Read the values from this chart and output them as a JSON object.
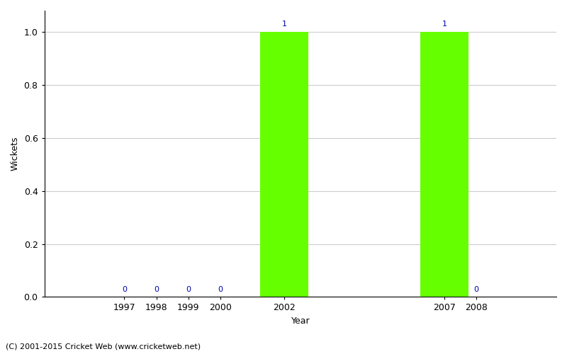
{
  "years": [
    1997,
    1998,
    1999,
    2000,
    2002,
    2007,
    2008
  ],
  "values": [
    0,
    0,
    0,
    0,
    1,
    1,
    0
  ],
  "bar_color": "#66ff00",
  "bar_edge_color": "#66ff00",
  "annotation_color": "#0000aa",
  "xlabel": "Year",
  "ylabel": "Wickets",
  "ylim": [
    0.0,
    1.08
  ],
  "yticks": [
    0.0,
    0.2,
    0.4,
    0.6,
    0.8,
    1.0
  ],
  "xlim_left": 1994.5,
  "xlim_right": 2010.5,
  "background_color": "#ffffff",
  "grid_color": "#cccccc",
  "footer": "(C) 2001-2015 Cricket Web (www.cricketweb.net)",
  "bar_width": 1.5,
  "xticks": [
    1997,
    1998,
    1999,
    2000,
    2002,
    2007,
    2008
  ]
}
